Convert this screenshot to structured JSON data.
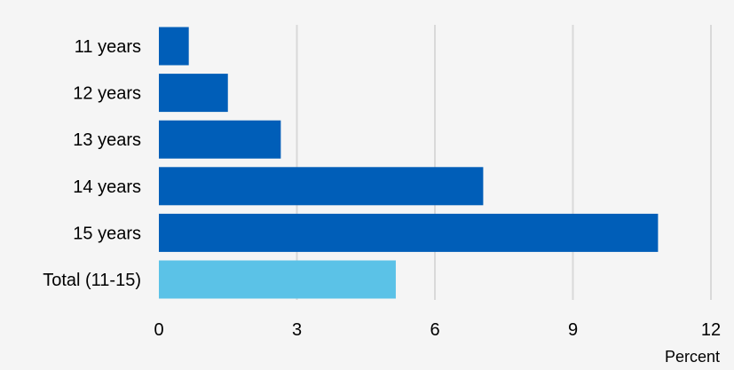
{
  "chart_data": {
    "type": "bar",
    "orientation": "horizontal",
    "categories": [
      "11 years",
      "12 years",
      "13 years",
      "14 years",
      "15 years",
      "Total (11-15)"
    ],
    "values": [
      0.65,
      1.5,
      2.65,
      7.05,
      10.85,
      5.15
    ],
    "xlabel": "Percent",
    "ylabel": "",
    "xlim": [
      0,
      12
    ],
    "xticks": [
      "0",
      "3",
      "6",
      "9",
      "12"
    ],
    "grid": "vertical",
    "legend": "none",
    "colors": {
      "primary_bar": "#005EB8",
      "total_bar": "#5BC2E7",
      "grid": "#D9D9D9",
      "background": "#F5F5F5"
    }
  }
}
